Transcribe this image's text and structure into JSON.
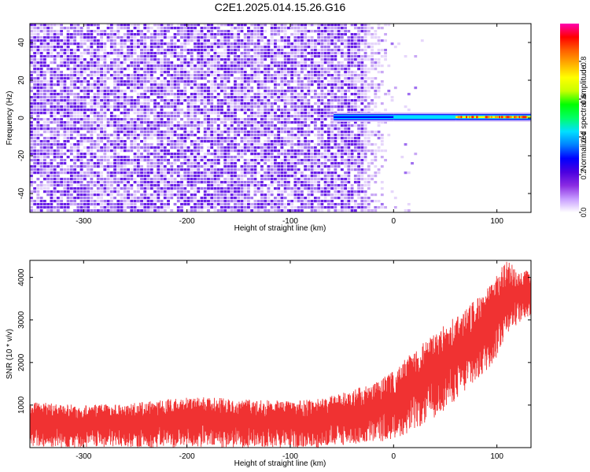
{
  "title": "C2E1.2025.014.15.26.G16",
  "chart_data": [
    {
      "type": "heatmap",
      "xlabel": "Height of straight line (km)",
      "ylabel": "Frequency (Hz)",
      "xlim": [
        -352,
        133
      ],
      "ylim": [
        -50,
        50
      ],
      "xticks": [
        -300,
        -200,
        -100,
        0,
        100
      ],
      "yticks": [
        -40,
        -20,
        0,
        20,
        40
      ],
      "colorbar": {
        "label": "Normalized spectral amplitude",
        "range": [
          0.0,
          1.0
        ],
        "ticks": [
          0.0,
          0.2,
          0.4,
          0.6,
          0.8
        ],
        "colormap": [
          "#ffffff",
          "#c79cff",
          "#8a2be2",
          "#4b00e0",
          "#0000ff",
          "#0080ff",
          "#00e0ff",
          "#00ff66",
          "#00ff00",
          "#c8ff00",
          "#ffff00",
          "#ffb000",
          "#ff6000",
          "#ff0000",
          "#ff00b0"
        ]
      },
      "noise_region_x": [
        -352,
        -30
      ],
      "signal_line": {
        "start_x": -58,
        "frequency_hz": 0.5,
        "segments": [
          {
            "x": [
              -58,
              0
            ],
            "amplitude": 0.3
          },
          {
            "x": [
              0,
              60
            ],
            "amplitude": 0.45
          },
          {
            "x": [
              60,
              133
            ],
            "amplitude": 0.7
          }
        ]
      }
    },
    {
      "type": "line",
      "xlabel": "Height of straight line (km)",
      "ylabel": "SNR (10 * v/v)",
      "xlim": [
        -352,
        133
      ],
      "ylim": [
        0,
        4400
      ],
      "xticks": [
        -300,
        -200,
        -100,
        0,
        100
      ],
      "yticks": [
        1000,
        2000,
        3000,
        4000
      ],
      "color": "#f03232",
      "envelope": {
        "x": [
          -352,
          -300,
          -250,
          -200,
          -150,
          -100,
          -70,
          -50,
          -20,
          0,
          20,
          40,
          60,
          80,
          90,
          100,
          110,
          115,
          120,
          125,
          133
        ],
        "low": [
          0,
          0,
          0,
          0,
          0,
          0,
          0,
          50,
          100,
          200,
          400,
          700,
          1100,
          1500,
          1800,
          2100,
          2700,
          2800,
          2900,
          3000,
          3100
        ],
        "high": [
          1100,
          1000,
          1050,
          1200,
          1150,
          1100,
          1150,
          1300,
          1500,
          1800,
          2300,
          2700,
          3100,
          3500,
          3700,
          4100,
          4400,
          4300,
          4100,
          4100,
          4300
        ]
      }
    }
  ]
}
